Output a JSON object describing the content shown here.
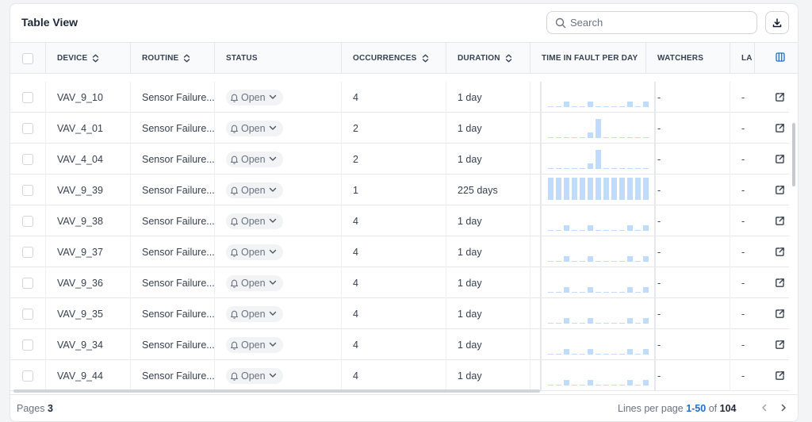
{
  "header": {
    "title": "Table View",
    "search_placeholder": "Search"
  },
  "columns": {
    "device": "DEVICE",
    "routine": "ROUTINE",
    "status": "STATUS",
    "occurrences": "OCCURRENCES",
    "duration": "DURATION",
    "time_in_fault": "TIME IN FAULT PER DAY",
    "watchers": "WATCHERS",
    "last": "LA"
  },
  "rows": [
    {
      "device": "VAV_9_10",
      "routine": "Sensor Failure...",
      "status": "Open",
      "occurrences": "4",
      "duration": "1 day",
      "watchers": "-",
      "last": "-",
      "fault_pattern": "a"
    },
    {
      "device": "VAV_4_01",
      "routine": "Sensor Failure...",
      "status": "Open",
      "occurrences": "2",
      "duration": "1 day",
      "watchers": "-",
      "last": "-",
      "fault_pattern": "b"
    },
    {
      "device": "VAV_4_04",
      "routine": "Sensor Failure...",
      "status": "Open",
      "occurrences": "2",
      "duration": "1 day",
      "watchers": "-",
      "last": "-",
      "fault_pattern": "b"
    },
    {
      "device": "VAV_9_39",
      "routine": "Sensor Failure...",
      "status": "Open",
      "occurrences": "1",
      "duration": "225 days",
      "watchers": "-",
      "last": "-",
      "fault_pattern": "full"
    },
    {
      "device": "VAV_9_38",
      "routine": "Sensor Failure...",
      "status": "Open",
      "occurrences": "4",
      "duration": "1 day",
      "watchers": "-",
      "last": "-",
      "fault_pattern": "a"
    },
    {
      "device": "VAV_9_37",
      "routine": "Sensor Failure...",
      "status": "Open",
      "occurrences": "4",
      "duration": "1 day",
      "watchers": "-",
      "last": "-",
      "fault_pattern": "a"
    },
    {
      "device": "VAV_9_36",
      "routine": "Sensor Failure...",
      "status": "Open",
      "occurrences": "4",
      "duration": "1 day",
      "watchers": "-",
      "last": "-",
      "fault_pattern": "a"
    },
    {
      "device": "VAV_9_35",
      "routine": "Sensor Failure...",
      "status": "Open",
      "occurrences": "4",
      "duration": "1 day",
      "watchers": "-",
      "last": "-",
      "fault_pattern": "a"
    },
    {
      "device": "VAV_9_34",
      "routine": "Sensor Failure...",
      "status": "Open",
      "occurrences": "4",
      "duration": "1 day",
      "watchers": "-",
      "last": "-",
      "fault_pattern": "a"
    },
    {
      "device": "VAV_9_44",
      "routine": "Sensor Failure...",
      "status": "Open",
      "occurrences": "4",
      "duration": "1 day",
      "watchers": "-",
      "last": "-",
      "fault_pattern": "a"
    }
  ],
  "footer": {
    "pages_label": "Pages",
    "pages_value": "3",
    "lines_label": "Lines per page",
    "range": "1-50",
    "of": "of",
    "total": "104"
  },
  "colors": {
    "accent": "#1d70c9",
    "spark_bar": "#bfdbfe",
    "spark_base": "#bfdbfe"
  },
  "icons": {
    "search": "search-icon",
    "download": "download-icon",
    "sort": "sort-icon",
    "columns": "columns-icon",
    "status": "bell-icon",
    "open_link": "external-link-icon"
  }
}
